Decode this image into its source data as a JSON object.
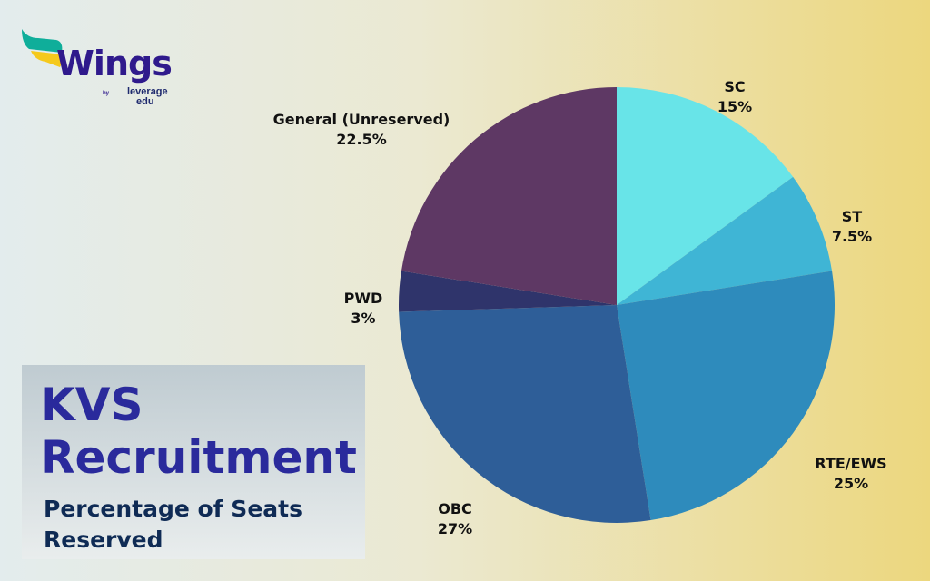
{
  "logo": {
    "word": "Wings",
    "by": "by",
    "brand_line1": "leverage",
    "brand_line2": "edu"
  },
  "title": {
    "line1": "KVS",
    "line2": "Recruitment",
    "subtitle": "Percentage of Seats Reserved"
  },
  "chart_data": {
    "type": "pie",
    "start": "top, clockwise",
    "slices": [
      {
        "label": "SC",
        "value": 15,
        "value_label": "15%",
        "color": "#68e4e8"
      },
      {
        "label": "ST",
        "value": 7.5,
        "value_label": "7.5%",
        "color": "#3fb5d5"
      },
      {
        "label": "RTE/EWS",
        "value": 25,
        "value_label": "25%",
        "color": "#2e8bbc"
      },
      {
        "label": "OBC",
        "value": 27,
        "value_label": "27%",
        "color": "#2e5e98"
      },
      {
        "label": "PWD",
        "value": 3,
        "value_label": "3%",
        "color": "#2f346b"
      },
      {
        "label": "General (Unreserved)",
        "value": 22.5,
        "value_label": "22.5%",
        "color": "#5e3864"
      }
    ]
  }
}
